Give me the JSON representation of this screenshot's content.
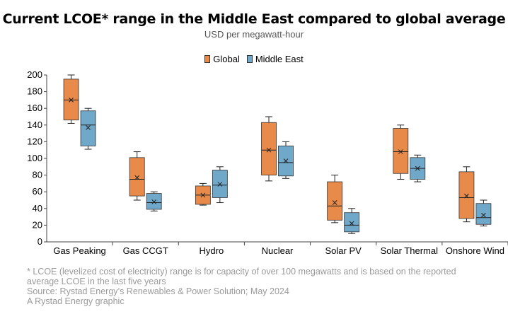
{
  "chart_data": {
    "type": "box",
    "title": "Current LCOE* range in the Middle East compared to global average",
    "subtitle": "USD per megawatt-hour",
    "ylim": [
      0,
      200
    ],
    "yticks": [
      0,
      20,
      40,
      60,
      80,
      100,
      120,
      140,
      160,
      180,
      200
    ],
    "grid": false,
    "legend_placement": "top-center",
    "categories": [
      "Gas Peaking",
      "Gas CCGT",
      "Hydro",
      "Nuclear",
      "Solar PV",
      "Solar Thermal",
      "Onshore Wind"
    ],
    "series": [
      {
        "name": "Global",
        "color": "#e88a4a",
        "boxes": [
          {
            "min": 142,
            "q1": 146,
            "median": 170,
            "q3": 195,
            "max": 200,
            "mean": 170
          },
          {
            "min": 50,
            "q1": 55,
            "median": 75,
            "q3": 101,
            "max": 108,
            "mean": 77
          },
          {
            "min": 44,
            "q1": 45,
            "median": 56,
            "q3": 67,
            "max": 70,
            "mean": 56
          },
          {
            "min": 73,
            "q1": 80,
            "median": 110,
            "q3": 143,
            "max": 150,
            "mean": 110
          },
          {
            "min": 23,
            "q1": 26,
            "median": 43,
            "q3": 72,
            "max": 80,
            "mean": 47
          },
          {
            "min": 75,
            "q1": 82,
            "median": 108,
            "q3": 136,
            "max": 140,
            "mean": 108
          },
          {
            "min": 24,
            "q1": 28,
            "median": 53,
            "q3": 84,
            "max": 90,
            "mean": 55
          }
        ]
      },
      {
        "name": "Middle East",
        "color": "#6fa8c9",
        "boxes": [
          {
            "min": 111,
            "q1": 115,
            "median": 140,
            "q3": 157,
            "max": 160,
            "mean": 137
          },
          {
            "min": 37,
            "q1": 39,
            "median": 47,
            "q3": 58,
            "max": 60,
            "mean": 48
          },
          {
            "min": 47,
            "q1": 53,
            "median": 68,
            "q3": 86,
            "max": 90,
            "mean": 69
          },
          {
            "min": 76,
            "q1": 79,
            "median": 95,
            "q3": 115,
            "max": 120,
            "mean": 97
          },
          {
            "min": 10,
            "q1": 12,
            "median": 20,
            "q3": 35,
            "max": 40,
            "mean": 22
          },
          {
            "min": 72,
            "q1": 75,
            "median": 88,
            "q3": 101,
            "max": 104,
            "mean": 88
          },
          {
            "min": 19,
            "q1": 21,
            "median": 29,
            "q3": 46,
            "max": 50,
            "mean": 32
          }
        ]
      }
    ]
  },
  "legend": {
    "global_label": "Global",
    "middle_east_label": "Middle East"
  },
  "footnotes": {
    "line1": "* LCOE (levelized cost of electricity) range is for capacity of over 100 megawatts and is based on the reported",
    "line2": "average LCOE in the last five years",
    "line3": "Source: Rystad Energy’s Renewables & Power Solution; May 2024",
    "line4": "A Rystad Energy graphic"
  }
}
